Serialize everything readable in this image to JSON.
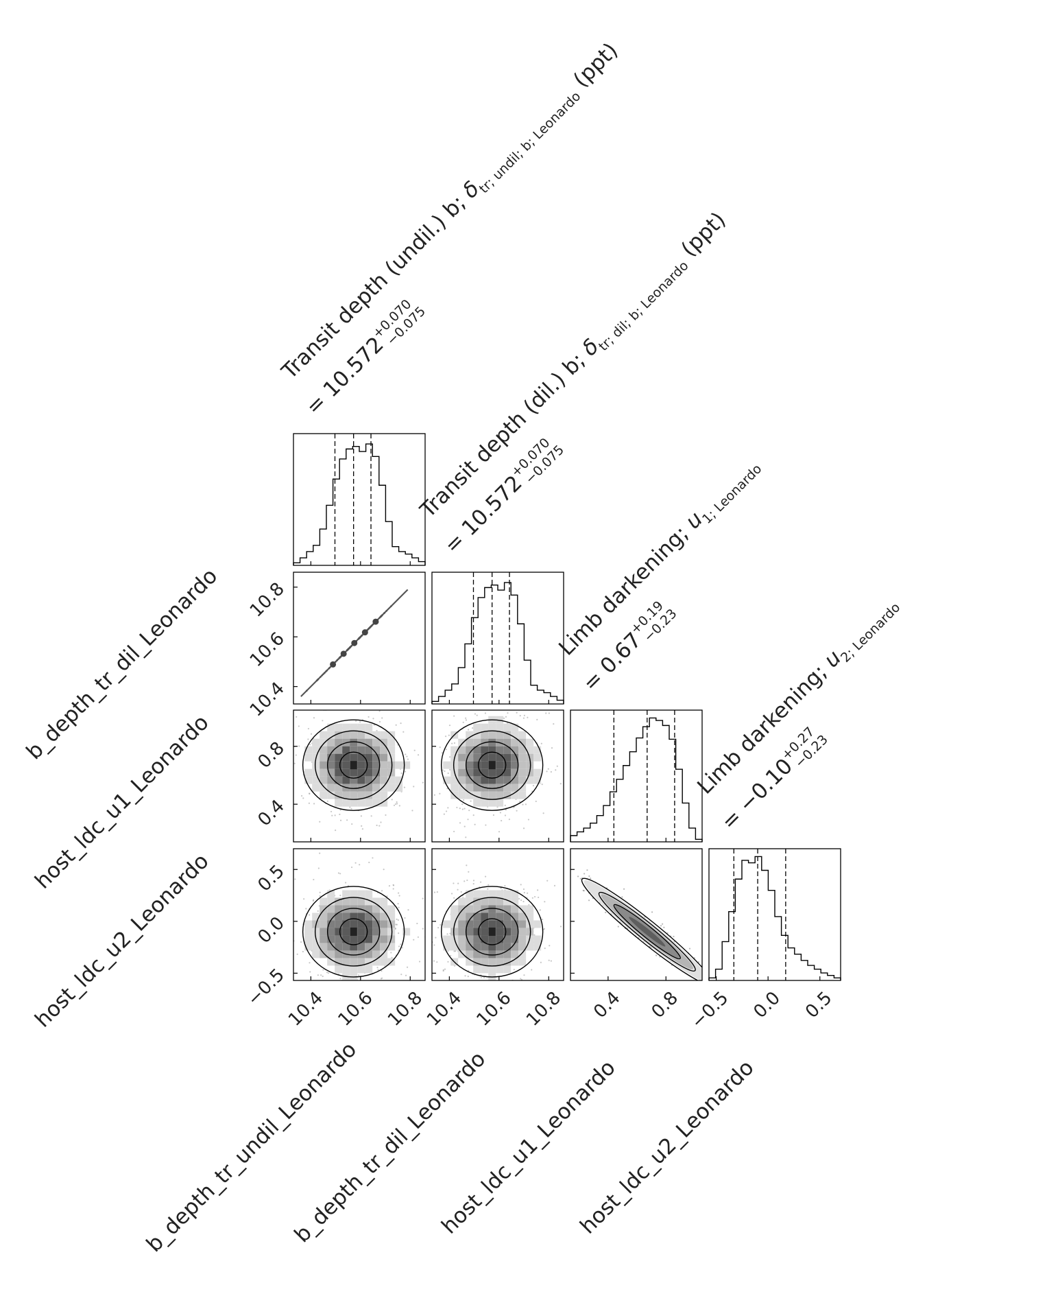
{
  "chart_data": {
    "type": "corner",
    "parameters": [
      {
        "name": "b_depth_tr_undil_Leonardo",
        "range": [
          10.33,
          10.86
        ],
        "ticks": [
          "10.4",
          "10.6",
          "10.8"
        ],
        "median": 10.572,
        "q_low": 10.497,
        "q_high": 10.642,
        "title": {
          "prefix": "Transit depth (undil.) b; ",
          "symbol": "δ",
          "sub": "tr; undil; b; Leonardo",
          "unit": " (ppt)",
          "value": "= 10.572",
          "plus": "+0.070",
          "minus": "−0.075"
        },
        "histogram": [
          0.02,
          0.06,
          0.11,
          0.16,
          0.29,
          0.48,
          0.69,
          0.85,
          0.93,
          0.95,
          0.91,
          0.97,
          0.87,
          0.64,
          0.35,
          0.15,
          0.11,
          0.09,
          0.06,
          0.03
        ]
      },
      {
        "name": "b_depth_tr_dil_Leonardo",
        "range": [
          10.33,
          10.86
        ],
        "ticks": [
          "10.4",
          "10.6",
          "10.8"
        ],
        "median": 10.572,
        "q_low": 10.497,
        "q_high": 10.642,
        "title": {
          "prefix": "Transit depth (dil.) b; ",
          "symbol": "δ",
          "sub": "tr; dil; b; Leonardo",
          "unit": " (ppt)",
          "value": "= 10.572",
          "plus": "+0.070",
          "minus": "−0.075"
        },
        "histogram": [
          0.02,
          0.06,
          0.11,
          0.16,
          0.29,
          0.48,
          0.69,
          0.85,
          0.93,
          0.95,
          0.91,
          0.97,
          0.87,
          0.64,
          0.35,
          0.15,
          0.11,
          0.09,
          0.06,
          0.03
        ]
      },
      {
        "name": "host_ldc_u1_Leonardo",
        "range": [
          0.14,
          1.05
        ],
        "ticks": [
          "0.4",
          "0.8"
        ],
        "median": 0.67,
        "q_low": 0.44,
        "q_high": 0.86,
        "title": {
          "prefix": "Limb darkening; ",
          "symbol": "u",
          "sub": "1; Leonardo",
          "unit": "",
          "value": "= 0.67",
          "plus": "+0.19",
          "minus": "−0.23"
        },
        "histogram": [
          0.05,
          0.08,
          0.11,
          0.15,
          0.21,
          0.29,
          0.4,
          0.5,
          0.61,
          0.72,
          0.83,
          0.92,
          0.99,
          0.97,
          0.93,
          0.82,
          0.58,
          0.31,
          0.11,
          0.02
        ]
      },
      {
        "name": "host_ldc_u2_Leonardo",
        "range": [
          -0.57,
          0.7
        ],
        "ticks": [
          "−0.5",
          "0.0",
          "0.5"
        ],
        "median": -0.1,
        "q_low": -0.33,
        "q_high": 0.17,
        "title": {
          "prefix": "Limb darkening; ",
          "symbol": "u",
          "sub": "2; Leonardo",
          "unit": "",
          "value": "= −0.10",
          "plus": "+0.27",
          "minus": "−0.23"
        },
        "histogram": [
          0.02,
          0.09,
          0.31,
          0.55,
          0.81,
          0.96,
          0.94,
          0.99,
          0.88,
          0.72,
          0.51,
          0.36,
          0.26,
          0.21,
          0.16,
          0.12,
          0.09,
          0.06,
          0.04,
          0.02
        ]
      }
    ],
    "y_axis_labels": [
      "b_depth_tr_dil_Leonardo",
      "host_ldc_u1_Leonardo",
      "host_ldc_u2_Leonardo"
    ],
    "x_axis_labels": [
      "b_depth_tr_undil_Leonardo",
      "b_depth_tr_dil_Leonardo",
      "host_ldc_u1_Leonardo",
      "host_ldc_u2_Leonardo"
    ],
    "correlations": [
      {
        "row": 1,
        "col": 0,
        "rho": 0.999
      },
      {
        "row": 2,
        "col": 0,
        "rho": 0.0
      },
      {
        "row": 2,
        "col": 1,
        "rho": 0.0
      },
      {
        "row": 3,
        "col": 0,
        "rho": 0.0
      },
      {
        "row": 3,
        "col": 1,
        "rho": 0.0
      },
      {
        "row": 3,
        "col": 2,
        "rho": -0.96
      }
    ],
    "grid": false,
    "legend": "none"
  }
}
